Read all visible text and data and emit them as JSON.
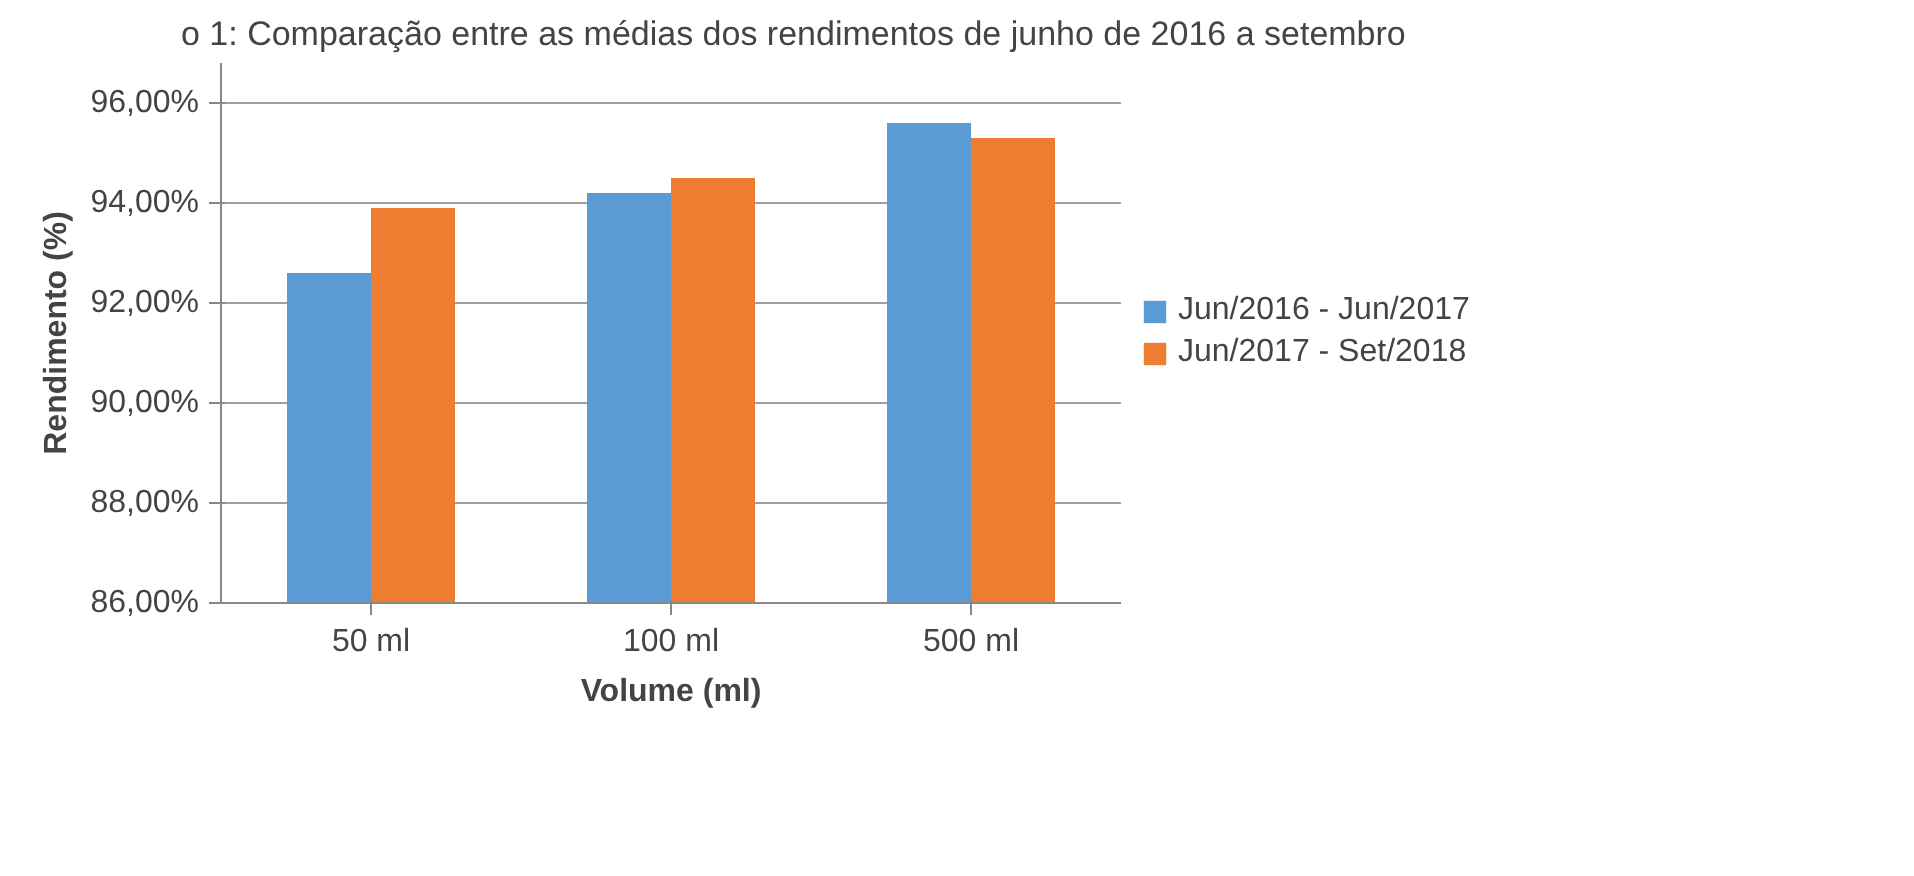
{
  "chart_data": {
    "type": "bar",
    "title": "o 1: Comparação entre as médias dos rendimentos de junho de 2016 a setembro",
    "xlabel": "Volume (ml)",
    "ylabel": "Rendimento (%)",
    "categories": [
      "50 ml",
      "100 ml",
      "500 ml"
    ],
    "series": [
      {
        "name": "Jun/2016 - Jun/2017",
        "color": "#5b9bd5",
        "values": [
          92.6,
          94.2,
          95.6
        ]
      },
      {
        "name": "Jun/2017 - Set/2018",
        "color": "#ed7d31",
        "values": [
          93.9,
          94.5,
          95.3
        ]
      }
    ],
    "ylim": [
      86,
      96.8
    ],
    "yticks": [
      {
        "value": 86,
        "label": "86,00%"
      },
      {
        "value": 88,
        "label": "88,00%"
      },
      {
        "value": 90,
        "label": "90,00%"
      },
      {
        "value": 92,
        "label": "92,00%"
      },
      {
        "value": 94,
        "label": "94,00%"
      },
      {
        "value": 96,
        "label": "96,00%"
      }
    ],
    "grid": "y",
    "legend": "right"
  }
}
